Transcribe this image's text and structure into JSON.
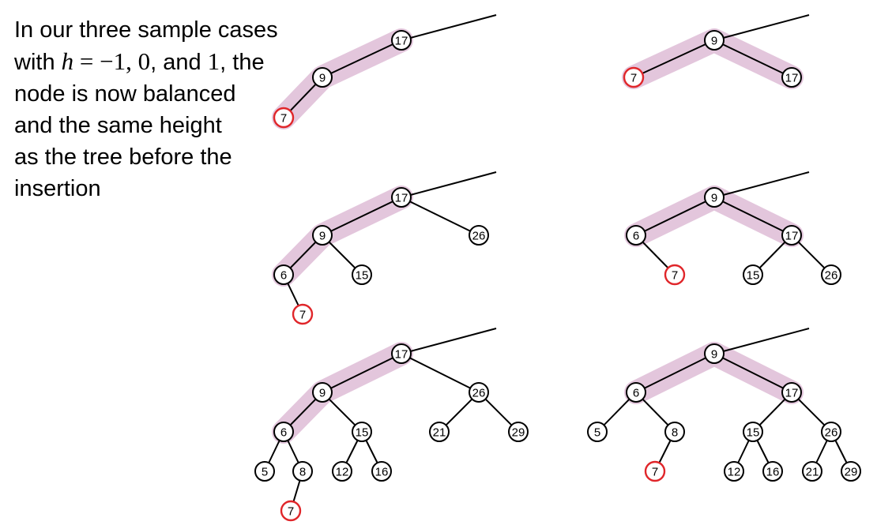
{
  "caption": {
    "line1": "In our three sample cases",
    "line2_pre": "with ",
    "h_var": "h",
    "eq": " = ",
    "v1": "−1",
    "sep1": ", ",
    "v2": "0",
    "sep2": ", and ",
    "v3": "1",
    "line2_post": ", the",
    "line3": "node is now balanced",
    "line4": "and the same height",
    "line5": "as the tree before the",
    "line6": "insertion"
  },
  "colors": {
    "highlight": "#e3c6dc",
    "edge": "#000000",
    "node_border": "#000000",
    "inserted_border": "#e0262a"
  },
  "trees": [
    {
      "id": "before-1",
      "nodes": [
        {
          "id": "a17",
          "label": "17"
        },
        {
          "id": "a9",
          "label": "9"
        },
        {
          "id": "a7",
          "label": "7",
          "inserted": true
        }
      ]
    },
    {
      "id": "after-1",
      "nodes": [
        {
          "id": "b9",
          "label": "9"
        },
        {
          "id": "b7",
          "label": "7",
          "inserted": true
        },
        {
          "id": "b17",
          "label": "17"
        }
      ]
    },
    {
      "id": "before-2",
      "nodes": [
        {
          "id": "c17",
          "label": "17"
        },
        {
          "id": "c9",
          "label": "9"
        },
        {
          "id": "c26",
          "label": "26"
        },
        {
          "id": "c6",
          "label": "6"
        },
        {
          "id": "c15",
          "label": "15"
        },
        {
          "id": "c7",
          "label": "7",
          "inserted": true
        }
      ]
    },
    {
      "id": "after-2",
      "nodes": [
        {
          "id": "d9",
          "label": "9"
        },
        {
          "id": "d6",
          "label": "6"
        },
        {
          "id": "d17",
          "label": "17"
        },
        {
          "id": "d7",
          "label": "7",
          "inserted": true
        },
        {
          "id": "d15",
          "label": "15"
        },
        {
          "id": "d26",
          "label": "26"
        }
      ]
    },
    {
      "id": "before-3",
      "nodes": [
        {
          "id": "e17",
          "label": "17"
        },
        {
          "id": "e9",
          "label": "9"
        },
        {
          "id": "e26",
          "label": "26"
        },
        {
          "id": "e6",
          "label": "6"
        },
        {
          "id": "e15",
          "label": "15"
        },
        {
          "id": "e21",
          "label": "21"
        },
        {
          "id": "e29",
          "label": "29"
        },
        {
          "id": "e5",
          "label": "5"
        },
        {
          "id": "e8",
          "label": "8"
        },
        {
          "id": "e12",
          "label": "12"
        },
        {
          "id": "e16",
          "label": "16"
        },
        {
          "id": "e7",
          "label": "7",
          "inserted": true
        }
      ]
    },
    {
      "id": "after-3",
      "nodes": [
        {
          "id": "f9",
          "label": "9"
        },
        {
          "id": "f6",
          "label": "6"
        },
        {
          "id": "f17",
          "label": "17"
        },
        {
          "id": "f5",
          "label": "5"
        },
        {
          "id": "f8",
          "label": "8"
        },
        {
          "id": "f15",
          "label": "15"
        },
        {
          "id": "f26",
          "label": "26"
        },
        {
          "id": "f7",
          "label": "7",
          "inserted": true
        },
        {
          "id": "f12",
          "label": "12"
        },
        {
          "id": "f16",
          "label": "16"
        },
        {
          "id": "f21",
          "label": "21"
        },
        {
          "id": "f29",
          "label": "29"
        }
      ]
    }
  ]
}
